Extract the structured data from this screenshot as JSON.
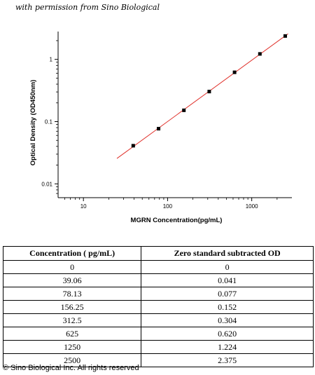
{
  "permission_text": "with permission from Sino Biological",
  "chart_data": {
    "type": "scatter",
    "x_scale": "log",
    "y_scale": "log",
    "xlabel": "MGRN  Concentration(pg/mL)",
    "ylabel": "Optical Density (OD450nm)",
    "xlim": [
      5,
      3000
    ],
    "ylim": [
      0.006,
      2.8
    ],
    "x_ticks": [
      10,
      100,
      1000
    ],
    "x_tick_labels": [
      "10",
      "100",
      "1000"
    ],
    "y_ticks": [
      0.01,
      0.1,
      1
    ],
    "y_tick_labels": [
      "0.01",
      "0.1",
      "1"
    ],
    "points": [
      {
        "x": 39.06,
        "y": 0.041
      },
      {
        "x": 78.13,
        "y": 0.077
      },
      {
        "x": 156.25,
        "y": 0.152
      },
      {
        "x": 312.5,
        "y": 0.304
      },
      {
        "x": 625,
        "y": 0.62
      },
      {
        "x": 1250,
        "y": 1.224
      },
      {
        "x": 2500,
        "y": 2.375
      }
    ],
    "fit_line": {
      "x_start": 25,
      "x_end": 2700
    },
    "point_color": "#000000",
    "line_color": "#e0302a"
  },
  "table": {
    "headers": [
      "Concentration ( pg/mL)",
      "Zero standard subtracted OD"
    ],
    "rows": [
      [
        "0",
        "0"
      ],
      [
        "39.06",
        "0.041"
      ],
      [
        "78.13",
        "0.077"
      ],
      [
        "156.25",
        "0.152"
      ],
      [
        "312.5",
        "0.304"
      ],
      [
        "625",
        "0.620"
      ],
      [
        "1250",
        "1.224"
      ],
      [
        "2500",
        "2.375"
      ]
    ]
  },
  "copyright": "© Sino Biological Inc. All rights reserved"
}
